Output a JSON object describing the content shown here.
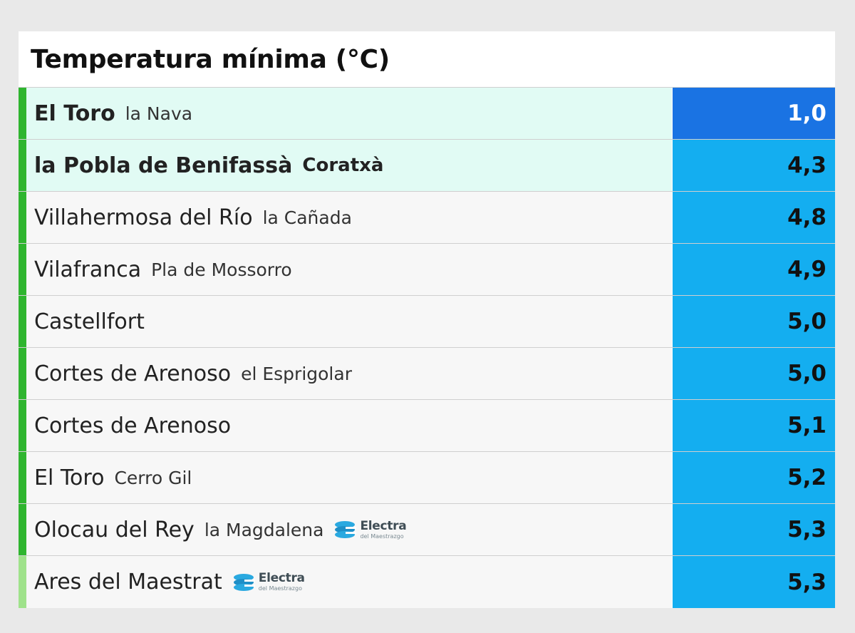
{
  "title": "Temperatura mínima (°C)",
  "colors": {
    "accent_green": "#2fb52f",
    "accent_light_green": "#9fe28b",
    "value_blue": "#14aef0",
    "value_dark_blue": "#1a73e3",
    "highlight_row": "#e1fbf4"
  },
  "rows": [
    {
      "place": "El Toro",
      "sub": "la Nava",
      "value": "1,0"
    },
    {
      "place": "la Pobla de Benifassà",
      "sub": "Coratxà",
      "value": "4,3"
    },
    {
      "place": "Villahermosa del Río",
      "sub": "la Cañada",
      "value": "4,8"
    },
    {
      "place": "Vilafranca",
      "sub": "Pla de Mossorro",
      "value": "4,9"
    },
    {
      "place": "Castellfort",
      "sub": "",
      "value": "5,0"
    },
    {
      "place": "Cortes de Arenoso",
      "sub": "el Esprigolar",
      "value": "5,0"
    },
    {
      "place": "Cortes de Arenoso",
      "sub": "",
      "value": "5,1"
    },
    {
      "place": "El Toro",
      "sub": "Cerro Gil",
      "value": "5,2"
    },
    {
      "place": "Olocau del Rey",
      "sub": "la Magdalena",
      "value": "5,3",
      "sponsor": {
        "name": "Electra",
        "tagline": "del Maestrazgo",
        "icon": "electra-logo-icon"
      }
    },
    {
      "place": "Ares del Maestrat",
      "sub": "",
      "value": "5,3",
      "sponsor": {
        "name": "Electra",
        "tagline": "del Maestrazgo",
        "icon": "electra-logo-icon"
      }
    }
  ]
}
